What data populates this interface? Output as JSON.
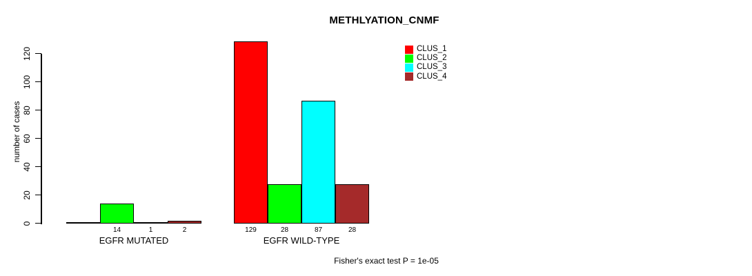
{
  "chart_data": {
    "type": "bar",
    "title": "METHLYATION_CNMF",
    "ylabel": "number of cases",
    "xlabel": "",
    "yticks": [
      0,
      20,
      40,
      60,
      80,
      100,
      120
    ],
    "ylim": [
      0,
      129
    ],
    "grid": false,
    "legend_position": "top-right",
    "categories": [
      "EGFR MUTATED",
      "EGFR WILD-TYPE"
    ],
    "series": [
      {
        "name": "CLUS_1",
        "color": "#FF0000",
        "values": [
          0,
          129
        ]
      },
      {
        "name": "CLUS_2",
        "color": "#00FF00",
        "values": [
          14,
          28
        ]
      },
      {
        "name": "CLUS_3",
        "color": "#00FFFF",
        "values": [
          1,
          87
        ]
      },
      {
        "name": "CLUS_4",
        "color": "#A52A2A",
        "values": [
          2,
          28
        ]
      }
    ],
    "bar_labels": [
      [
        "",
        "14",
        "1",
        "2"
      ],
      [
        "129",
        "28",
        "87",
        "28"
      ]
    ],
    "footnote": "Fisher's exact test P = 1e-05"
  },
  "colors": {
    "background": "#FFFFFF",
    "axis": "#000000",
    "text": "#000000"
  }
}
